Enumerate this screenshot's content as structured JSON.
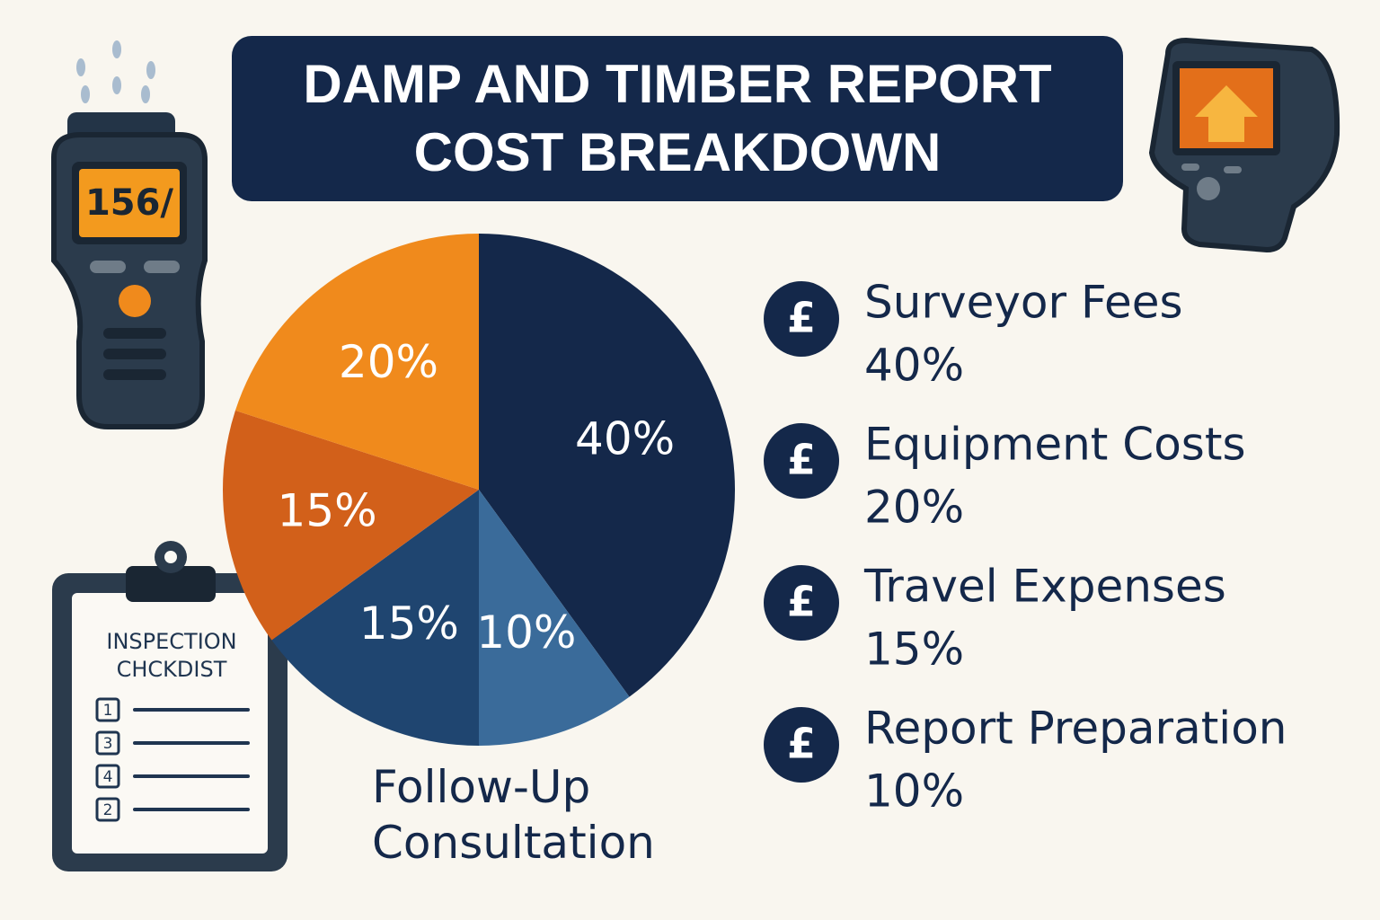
{
  "chart_data": {
    "type": "pie",
    "title": "DAMP AND TIMBER REPORT COST BREAKDOWN",
    "categories": [
      "Surveyor Fees",
      "Report Preparation",
      "Follow-Up Consultation",
      "Travel Expenses",
      "Equipment Costs"
    ],
    "values": [
      40,
      10,
      15,
      15,
      20
    ],
    "value_labels": [
      "40%",
      "10%",
      "15%",
      "15%",
      "20%"
    ],
    "colors": [
      "#14284a",
      "#3a6b9a",
      "#1f4570",
      "#d2601a",
      "#f08a1c"
    ],
    "legend_icon": "£"
  },
  "illustrations": {
    "meter_display": "156/",
    "clipboard_title": [
      "INSPECTION",
      "CHCKDIST"
    ],
    "clipboard_numbers": [
      "1",
      "3",
      "4",
      "2"
    ]
  }
}
